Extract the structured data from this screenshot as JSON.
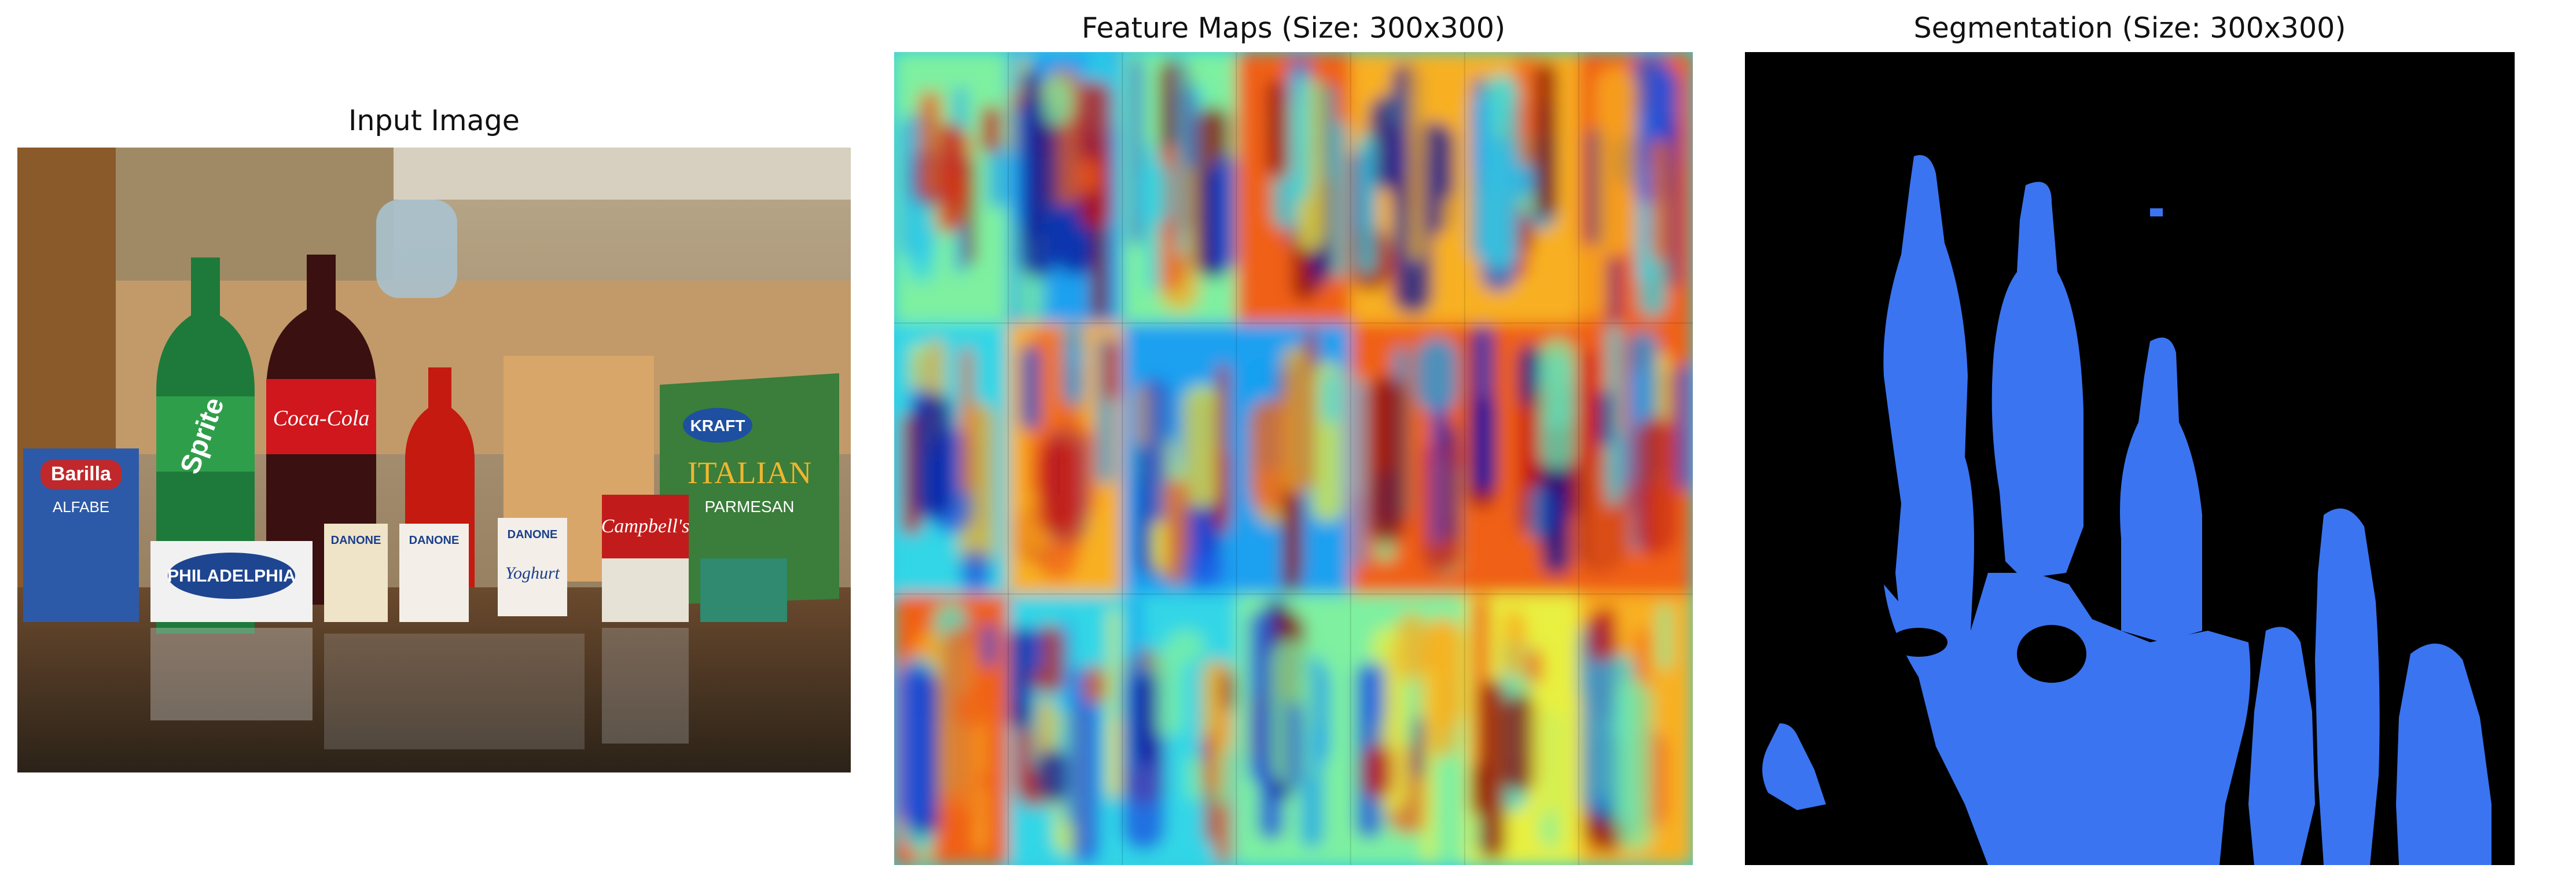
{
  "panels": [
    {
      "title": "Input Image"
    },
    {
      "title": "Feature Maps (Size: 300x300)"
    },
    {
      "title": "Segmentation (Size: 300x300)"
    }
  ],
  "photo_labels": {
    "barilla": "Barilla",
    "alfabeto": "ALFABE",
    "sprite": "Sprite",
    "coke": "Coca-Cola",
    "philadelphia": "PHILADELPHIA",
    "kraft": "KRAFT",
    "italian": "ITALIAN",
    "parmesan": "PARMESAN",
    "campbells": "Campbell's",
    "danone1": "DANONE",
    "danone2": "DANONE",
    "danone3": "DANONE",
    "yoghurt": "Yoghurt"
  },
  "colors": {
    "segmentation_foreground": "#3a74f0",
    "segmentation_background": "#000000"
  }
}
